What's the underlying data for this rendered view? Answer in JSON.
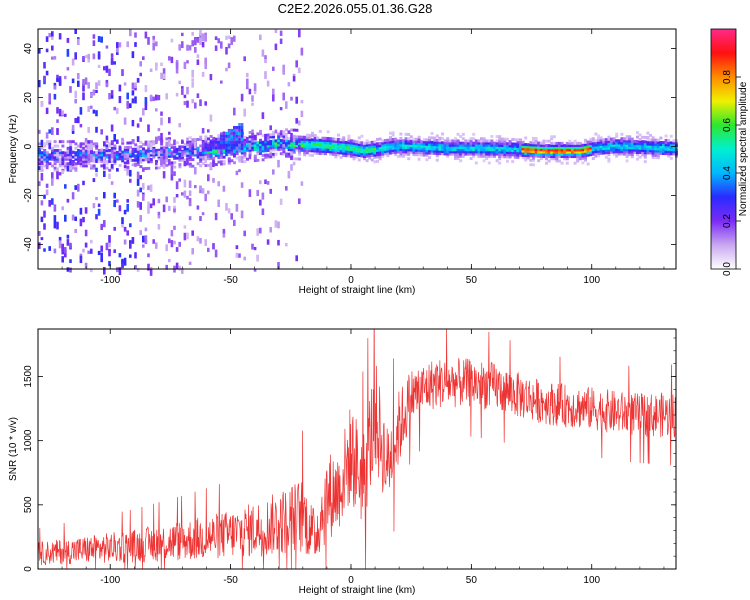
{
  "title": "C2E2.2026.055.01.36.G28",
  "chart_data": [
    {
      "type": "heatmap",
      "xlabel": "Height of straight line (km)",
      "ylabel": "Frequency (Hz)",
      "xlim": [
        -130,
        135
      ],
      "ylim": [
        -50,
        48
      ],
      "xticks": [
        -100,
        -50,
        0,
        50,
        100
      ],
      "yticks": [
        -40,
        -20,
        0,
        20,
        40
      ],
      "colorbar": {
        "label": "Normalized spectral amplitude",
        "range": [
          0,
          1
        ],
        "ticks": [
          "0.0",
          "0.2",
          "0.4",
          "0.6",
          "0.8"
        ],
        "ticks_values": [
          0,
          0.2,
          0.4,
          0.6,
          0.8
        ],
        "colors": [
          "#ffffff",
          "#c9a8f0",
          "#7a2bf5",
          "#2a2bff",
          "#00b8ff",
          "#00f0d0",
          "#2ee82e",
          "#f0f000",
          "#ff8c00",
          "#ff1010",
          "#ff2a8a"
        ]
      },
      "ridge": {
        "x": [
          -130,
          -100,
          -60,
          -50,
          -30,
          -10,
          0,
          5,
          20,
          40,
          60,
          80,
          95,
          100,
          110,
          135
        ],
        "freq": [
          -4,
          -4,
          -2,
          -1,
          1,
          0,
          -1,
          -2,
          0,
          -1,
          -1,
          -2,
          -2,
          -1,
          0,
          -1
        ]
      }
    },
    {
      "type": "line",
      "xlabel": "Height of straight line (km)",
      "ylabel": "SNR (10 * v/v)",
      "xlim": [
        -130,
        135
      ],
      "ylim": [
        0,
        1870
      ],
      "xticks": [
        -100,
        -50,
        0,
        50,
        100
      ],
      "yticks": [
        0,
        500,
        1000,
        1500
      ],
      "color": "#ee3333",
      "envelope": {
        "x": [
          -130,
          -110,
          -90,
          -70,
          -50,
          -35,
          -20,
          -15,
          -10,
          -5,
          0,
          5,
          10,
          15,
          20,
          25,
          35,
          50,
          60,
          70,
          80,
          90,
          100,
          110,
          120,
          135
        ],
        "mean": [
          120,
          150,
          180,
          220,
          270,
          330,
          420,
          250,
          560,
          620,
          900,
          700,
          1200,
          800,
          1100,
          1350,
          1450,
          1450,
          1420,
          1350,
          1300,
          1270,
          1250,
          1220,
          1200,
          1200
        ],
        "spread": [
          90,
          110,
          130,
          160,
          190,
          230,
          300,
          200,
          350,
          320,
          400,
          380,
          450,
          320,
          300,
          220,
          200,
          190,
          190,
          180,
          170,
          170,
          170,
          170,
          170,
          180
        ]
      }
    }
  ]
}
